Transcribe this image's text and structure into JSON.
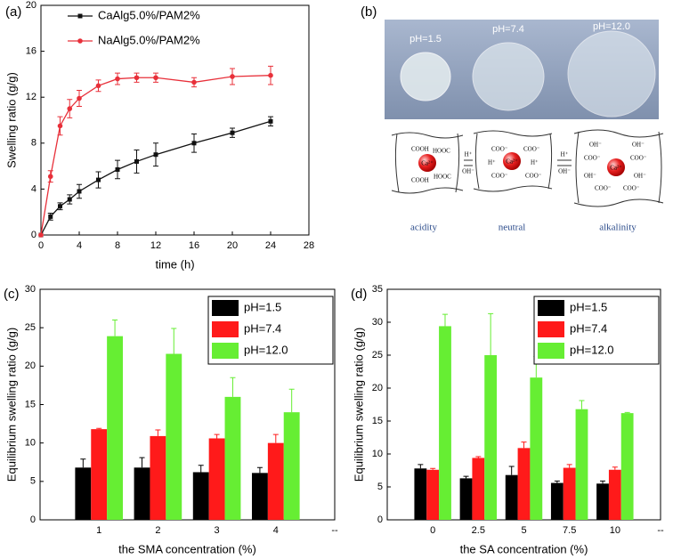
{
  "chart_data": [
    {
      "type": "line",
      "panel_label": "(a)",
      "xlabel": "time (h)",
      "ylabel": "Swelling ratio (g/g)",
      "x": [
        0,
        1,
        2,
        3,
        4,
        6,
        8,
        10,
        12,
        16,
        20,
        24
      ],
      "series": [
        {
          "name": "CaAlg5.0%/PAM2%",
          "color": "#111111",
          "marker": "square",
          "values": [
            0,
            1.6,
            2.5,
            3.1,
            3.8,
            4.8,
            5.7,
            6.4,
            7.0,
            8.0,
            8.9,
            9.9
          ],
          "errors": [
            0,
            0.3,
            0.3,
            0.4,
            0.6,
            0.7,
            0.8,
            1.0,
            1.0,
            0.8,
            0.4,
            0.4
          ]
        },
        {
          "name": "NaAlg5.0%/PAM2%",
          "color": "#e8303a",
          "marker": "circle",
          "values": [
            0,
            5.1,
            9.5,
            11.0,
            11.9,
            13.0,
            13.6,
            13.7,
            13.7,
            13.3,
            13.8,
            13.9
          ],
          "errors": [
            0,
            0.5,
            0.8,
            0.8,
            0.7,
            0.5,
            0.5,
            0.4,
            0.4,
            0.4,
            0.7,
            0.8
          ]
        }
      ],
      "xlim": [
        0,
        28
      ],
      "xticks": [
        0,
        4,
        8,
        12,
        16,
        20,
        24,
        28
      ],
      "ylim": [
        0,
        20
      ],
      "yticks": [
        0,
        4,
        8,
        12,
        16,
        20
      ],
      "legend": "upper left"
    },
    {
      "type": "bar",
      "panel_label": "(c)",
      "xlabel": "the SMA concentration (%)",
      "ylabel": "Equilibrium swelling ratio (g/g)",
      "categories": [
        "1",
        "2",
        "3",
        "4",
        "--"
      ],
      "series": [
        {
          "name": "pH=1.5",
          "color": "#000000",
          "values": [
            6.8,
            6.8,
            6.2,
            6.1,
            null
          ],
          "errors": [
            1.1,
            1.3,
            0.9,
            0.7,
            null
          ]
        },
        {
          "name": "pH=7.4",
          "color": "#ff1a1a",
          "values": [
            11.8,
            10.9,
            10.6,
            10.0,
            null
          ],
          "errors": [
            0.1,
            0.8,
            0.5,
            1.1,
            null
          ]
        },
        {
          "name": "pH=12.0",
          "color": "#66ee33",
          "values": [
            23.9,
            21.6,
            16.0,
            14.0,
            null
          ],
          "errors": [
            2.1,
            3.3,
            2.5,
            3.0,
            null
          ]
        }
      ],
      "ylim": [
        0,
        30
      ],
      "yticks": [
        0,
        5,
        10,
        15,
        20,
        25,
        30
      ],
      "legend": "upper right"
    },
    {
      "type": "bar",
      "panel_label": "(d)",
      "xlabel": "the SA concentration (%)",
      "ylabel": "Equilibrium swelling ratio (g/g)",
      "categories": [
        "0",
        "2.5",
        "5",
        "7.5",
        "10",
        "--"
      ],
      "series": [
        {
          "name": "pH=1.5",
          "color": "#000000",
          "values": [
            7.8,
            6.3,
            6.8,
            5.6,
            5.5,
            null
          ],
          "errors": [
            0.6,
            0.3,
            1.3,
            0.3,
            0.4,
            null
          ]
        },
        {
          "name": "pH=7.4",
          "color": "#ff1a1a",
          "values": [
            7.6,
            9.4,
            10.9,
            7.9,
            7.6,
            null
          ],
          "errors": [
            0.2,
            0.2,
            0.9,
            0.5,
            0.4,
            null
          ]
        },
        {
          "name": "pH=12.0",
          "color": "#66ee33",
          "values": [
            29.4,
            25.0,
            21.6,
            16.8,
            16.2,
            null
          ],
          "errors": [
            1.8,
            6.3,
            3.2,
            1.3,
            0.1,
            null
          ]
        }
      ],
      "ylim": [
        0,
        35
      ],
      "yticks": [
        0,
        5,
        10,
        15,
        20,
        25,
        30,
        35
      ],
      "legend": "upper right"
    }
  ],
  "photo_panel": {
    "label": "(b)",
    "photo_labels": [
      "pH=1.5",
      "pH=7.4",
      "pH=12.0"
    ],
    "scheme_labels": [
      "acidity",
      "neutral",
      "alkalinity"
    ],
    "center_ion": "Ca²⁺",
    "arrow_labels": [
      "H⁺",
      "OH⁻"
    ],
    "group_labels": [
      "COOH",
      "HOOC",
      "COO⁻",
      "H⁺",
      "OH⁻"
    ]
  }
}
